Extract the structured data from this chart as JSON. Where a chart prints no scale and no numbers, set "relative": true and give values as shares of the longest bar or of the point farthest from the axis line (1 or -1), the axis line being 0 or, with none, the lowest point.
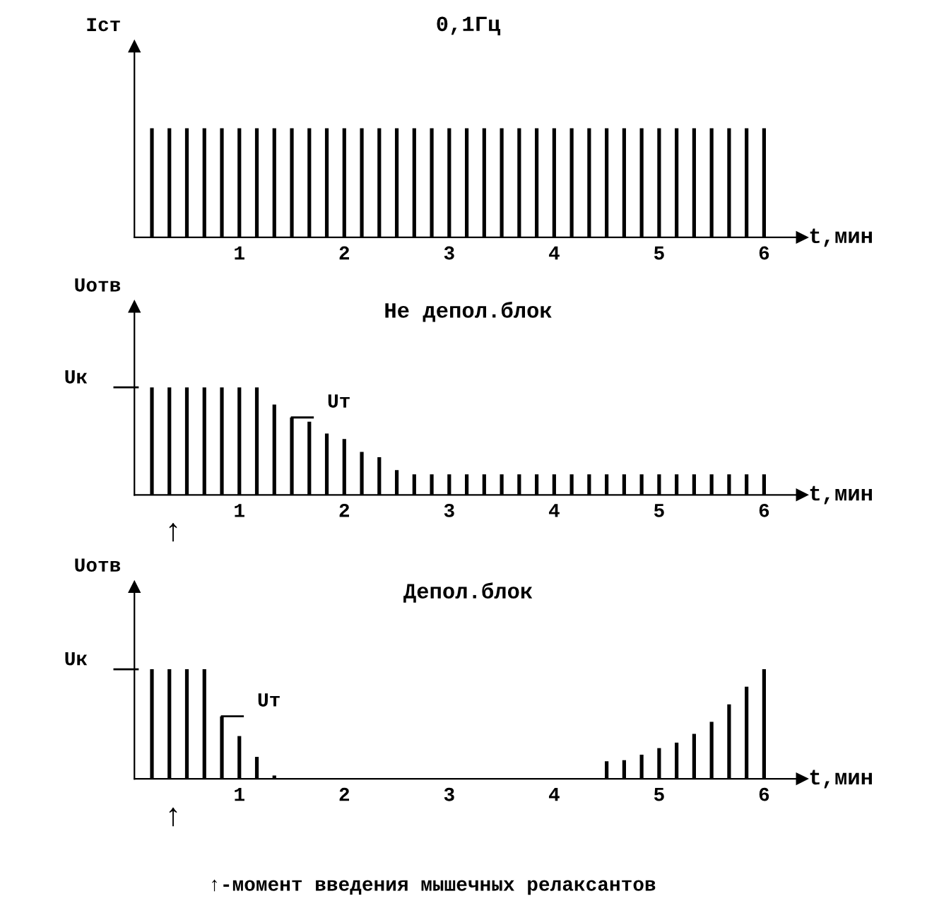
{
  "chart_data": [
    {
      "type": "bar",
      "title": "0,1Гц",
      "ylabel": "Iст",
      "xlabel": "t,мин",
      "relative": true,
      "color": "#000000",
      "xlim": [
        0,
        6.36
      ],
      "xticks": [
        1,
        2,
        3,
        4,
        5,
        6
      ],
      "x": [
        0.1667,
        0.3333,
        0.5,
        0.6667,
        0.8333,
        1.0,
        1.1667,
        1.3333,
        1.5,
        1.6667,
        1.8333,
        2.0,
        2.1667,
        2.3333,
        2.5,
        2.6667,
        2.8333,
        3.0,
        3.1667,
        3.3333,
        3.5,
        3.6667,
        3.8333,
        4.0,
        4.1667,
        4.3333,
        4.5,
        4.6667,
        4.8333,
        5.0,
        5.1667,
        5.3333,
        5.5,
        5.6667,
        5.8333,
        6.0
      ],
      "values": [
        1,
        1,
        1,
        1,
        1,
        1,
        1,
        1,
        1,
        1,
        1,
        1,
        1,
        1,
        1,
        1,
        1,
        1,
        1,
        1,
        1,
        1,
        1,
        1,
        1,
        1,
        1,
        1,
        1,
        1,
        1,
        1,
        1,
        1,
        1,
        1
      ]
    },
    {
      "type": "bar",
      "title": "Не депол.блок",
      "ylabel": "Uотв",
      "xlabel": "t,мин",
      "relative": true,
      "color": "#000000",
      "xlim": [
        0,
        6.36
      ],
      "xticks": [
        1,
        2,
        3,
        4,
        5,
        6
      ],
      "x": [
        0.1667,
        0.3333,
        0.5,
        0.6667,
        0.8333,
        1.0,
        1.1667,
        1.3333,
        1.5,
        1.6667,
        1.8333,
        2.0,
        2.1667,
        2.3333,
        2.5,
        2.6667,
        2.8333,
        3.0,
        3.1667,
        3.3333,
        3.5,
        3.6667,
        3.8333,
        4.0,
        4.1667,
        4.3333,
        4.5,
        4.6667,
        4.8333,
        5.0,
        5.1667,
        5.3333,
        5.5,
        5.6667,
        5.8333,
        6.0
      ],
      "values": [
        1,
        1,
        1,
        1,
        1,
        1,
        1,
        0.84,
        0.72,
        0.68,
        0.57,
        0.52,
        0.4,
        0.35,
        0.23,
        0.19,
        0.19,
        0.19,
        0.19,
        0.19,
        0.19,
        0.19,
        0.19,
        0.19,
        0.19,
        0.19,
        0.19,
        0.19,
        0.19,
        0.19,
        0.19,
        0.19,
        0.19,
        0.19,
        0.19,
        0.19
      ],
      "ref_lines": [
        {
          "axis": "y",
          "value": 1,
          "label": "Uк"
        }
      ],
      "annotations": [
        {
          "text": "Uт",
          "x": 1.5,
          "y": 0.72
        },
        "↑"
      ]
    },
    {
      "type": "bar",
      "title": "Депол.блок",
      "ylabel": "Uотв",
      "xlabel": "t,мин",
      "relative": true,
      "color": "#000000",
      "xlim": [
        0,
        6.36
      ],
      "xticks": [
        1,
        2,
        3,
        4,
        5,
        6
      ],
      "x": [
        0.1667,
        0.3333,
        0.5,
        0.6667,
        0.8333,
        1.0,
        1.1667,
        1.3333,
        1.5,
        1.6667,
        1.8333,
        2.0,
        2.1667,
        2.3333,
        2.5,
        2.6667,
        2.8333,
        3.0,
        3.1667,
        3.3333,
        3.5,
        3.6667,
        3.8333,
        4.0,
        4.1667,
        4.3333,
        4.5,
        4.6667,
        4.8333,
        5.0,
        5.1667,
        5.3333,
        5.5,
        5.6667,
        5.8333,
        6.0
      ],
      "values": [
        1,
        1,
        1,
        1,
        0.57,
        0.39,
        0.2,
        0.03,
        0,
        0,
        0,
        0,
        0,
        0,
        0,
        0,
        0,
        0,
        0,
        0,
        0,
        0,
        0,
        0,
        0,
        0,
        0.16,
        0.17,
        0.22,
        0.28,
        0.33,
        0.41,
        0.52,
        0.68,
        0.84,
        1
      ],
      "ref_lines": [
        {
          "axis": "y",
          "value": 1,
          "label": "Uк"
        }
      ],
      "annotations": [
        {
          "text": "Uт",
          "x": 0.8333,
          "y": 0.57
        },
        "↑",
        "↑-момент введения мышечных релаксантов"
      ]
    }
  ]
}
